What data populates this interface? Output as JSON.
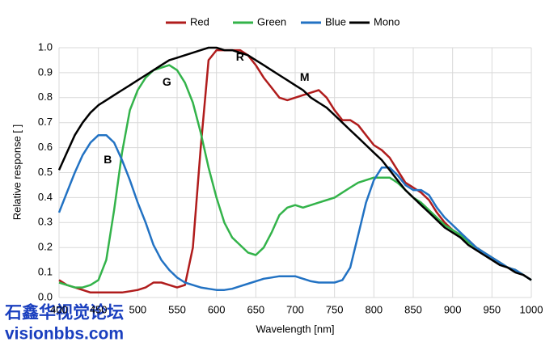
{
  "chart_data": {
    "type": "line",
    "xlabel": "Wavelength [nm]",
    "ylabel": "Relative response [ ]",
    "legend": "top",
    "grid": true,
    "xlim": [
      400,
      1000
    ],
    "xticks": [
      400,
      450,
      500,
      550,
      600,
      650,
      700,
      750,
      800,
      850,
      900,
      950,
      1000
    ],
    "ylim": [
      0,
      1
    ],
    "yticks": [
      {
        "value": 0,
        "label": "0.0"
      },
      0.1,
      0.2,
      0.3,
      0.4,
      0.5,
      0.6,
      0.7,
      0.8,
      0.9,
      {
        "value": 1,
        "label": "1.0"
      }
    ],
    "x": [
      400,
      410,
      420,
      430,
      440,
      450,
      460,
      470,
      480,
      490,
      500,
      510,
      520,
      530,
      540,
      550,
      560,
      570,
      580,
      590,
      600,
      610,
      620,
      630,
      640,
      650,
      660,
      670,
      680,
      690,
      700,
      710,
      720,
      730,
      740,
      750,
      760,
      770,
      780,
      790,
      800,
      810,
      820,
      830,
      840,
      850,
      860,
      870,
      880,
      890,
      900,
      910,
      920,
      930,
      940,
      950,
      960,
      970,
      980,
      990,
      1000
    ],
    "series": [
      {
        "name": "Red",
        "color": "#b01c1c",
        "values": [
          0.07,
          0.05,
          0.04,
          0.03,
          0.02,
          0.02,
          0.02,
          0.02,
          0.02,
          0.025,
          0.03,
          0.04,
          0.06,
          0.06,
          0.05,
          0.04,
          0.05,
          0.2,
          0.6,
          0.95,
          0.99,
          0.99,
          0.99,
          0.99,
          0.97,
          0.93,
          0.88,
          0.84,
          0.8,
          0.79,
          0.8,
          0.81,
          0.82,
          0.83,
          0.8,
          0.75,
          0.71,
          0.71,
          0.69,
          0.65,
          0.61,
          0.59,
          0.56,
          0.51,
          0.46,
          0.44,
          0.42,
          0.39,
          0.34,
          0.3,
          0.27,
          0.25,
          0.23,
          0.2,
          0.18,
          0.16,
          0.14,
          0.12,
          0.11,
          0.09,
          0.07
        ]
      },
      {
        "name": "Green",
        "color": "#33b34a",
        "values": [
          0.06,
          0.05,
          0.04,
          0.04,
          0.05,
          0.07,
          0.15,
          0.35,
          0.58,
          0.75,
          0.83,
          0.88,
          0.91,
          0.92,
          0.93,
          0.91,
          0.86,
          0.78,
          0.66,
          0.52,
          0.4,
          0.3,
          0.24,
          0.21,
          0.18,
          0.17,
          0.2,
          0.26,
          0.33,
          0.36,
          0.37,
          0.36,
          0.37,
          0.38,
          0.39,
          0.4,
          0.42,
          0.44,
          0.46,
          0.47,
          0.48,
          0.48,
          0.48,
          0.46,
          0.43,
          0.4,
          0.38,
          0.35,
          0.32,
          0.29,
          0.27,
          0.25,
          0.22,
          0.2,
          0.18,
          0.16,
          0.14,
          0.12,
          0.11,
          0.09,
          0.07
        ]
      },
      {
        "name": "Blue",
        "color": "#2272c3",
        "values": [
          0.34,
          0.42,
          0.5,
          0.57,
          0.62,
          0.65,
          0.65,
          0.62,
          0.55,
          0.47,
          0.38,
          0.3,
          0.21,
          0.15,
          0.11,
          0.08,
          0.06,
          0.05,
          0.04,
          0.035,
          0.03,
          0.03,
          0.035,
          0.045,
          0.055,
          0.065,
          0.075,
          0.08,
          0.085,
          0.085,
          0.085,
          0.075,
          0.065,
          0.06,
          0.06,
          0.06,
          0.07,
          0.12,
          0.25,
          0.38,
          0.47,
          0.52,
          0.52,
          0.49,
          0.45,
          0.43,
          0.43,
          0.41,
          0.36,
          0.32,
          0.29,
          0.26,
          0.23,
          0.2,
          0.18,
          0.16,
          0.14,
          0.12,
          0.11,
          0.09,
          0.07
        ]
      },
      {
        "name": "Mono",
        "color": "#000000",
        "values": [
          0.51,
          0.58,
          0.65,
          0.7,
          0.74,
          0.77,
          0.79,
          0.81,
          0.83,
          0.85,
          0.87,
          0.89,
          0.91,
          0.93,
          0.95,
          0.96,
          0.97,
          0.98,
          0.99,
          1.0,
          1.0,
          0.99,
          0.99,
          0.98,
          0.97,
          0.95,
          0.93,
          0.91,
          0.89,
          0.87,
          0.85,
          0.83,
          0.8,
          0.78,
          0.76,
          0.73,
          0.7,
          0.67,
          0.64,
          0.61,
          0.58,
          0.55,
          0.51,
          0.47,
          0.43,
          0.4,
          0.37,
          0.34,
          0.31,
          0.28,
          0.26,
          0.24,
          0.21,
          0.19,
          0.17,
          0.15,
          0.13,
          0.12,
          0.1,
          0.09,
          0.07
        ]
      }
    ],
    "annotations": [
      {
        "text": "R",
        "x": 630,
        "y": 0.96
      },
      {
        "text": "G",
        "x": 537,
        "y": 0.86
      },
      {
        "text": "B",
        "x": 462,
        "y": 0.55
      },
      {
        "text": "M",
        "x": 712,
        "y": 0.88
      }
    ]
  },
  "watermark": [
    "石鑫华视觉论坛",
    "visionbbs.com"
  ]
}
